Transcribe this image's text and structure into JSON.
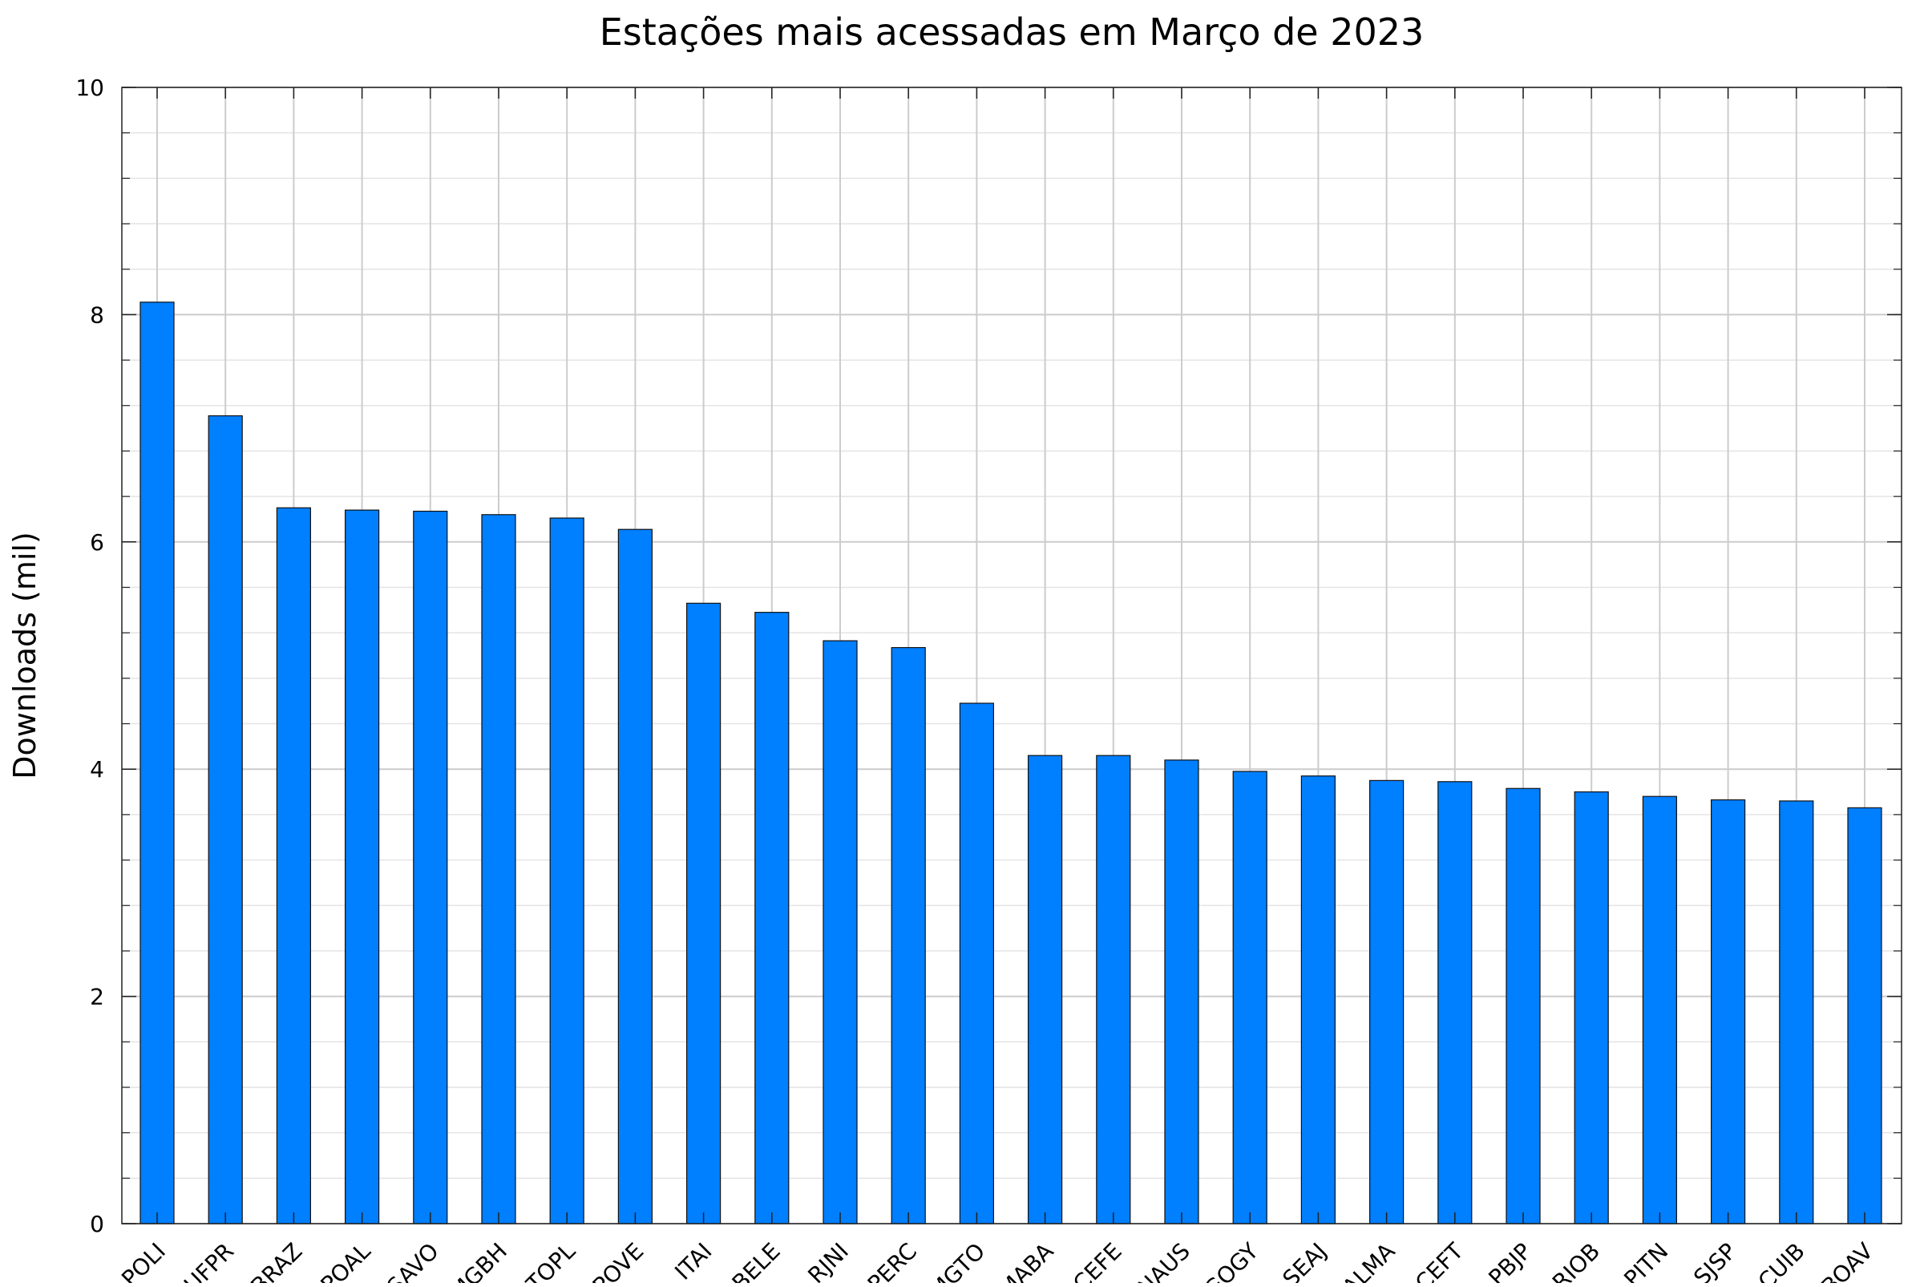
{
  "chart_data": {
    "type": "bar",
    "title": "Estações mais acessadas em Março de 2023",
    "xlabel": "",
    "ylabel": "Downloads (mil)",
    "ylim": [
      0,
      10
    ],
    "yticks": [
      "0",
      "2",
      "4",
      "6",
      "8",
      "10"
    ],
    "grid": true,
    "legend": "none",
    "bar_color": "#007fff",
    "categories": [
      "POLI",
      "UFPR",
      "BRAZ",
      "POAL",
      "SAVO",
      "MGBH",
      "TOPL",
      "POVE",
      "ITAI",
      "BELE",
      "RJNI",
      "PERC",
      "MGTO",
      "MABA",
      "CEFE",
      "NAUS",
      "GOGY",
      "SEAJ",
      "ALMA",
      "CEFT",
      "PBJP",
      "RIOB",
      "PITN",
      "SJSP",
      "CUIB",
      "BOAV"
    ],
    "values": [
      8.11,
      7.11,
      6.3,
      6.28,
      6.27,
      6.24,
      6.21,
      6.11,
      5.46,
      5.38,
      5.13,
      5.07,
      4.58,
      4.12,
      4.12,
      4.08,
      3.98,
      3.94,
      3.9,
      3.89,
      3.83,
      3.8,
      3.76,
      3.73,
      3.72,
      3.66
    ]
  }
}
